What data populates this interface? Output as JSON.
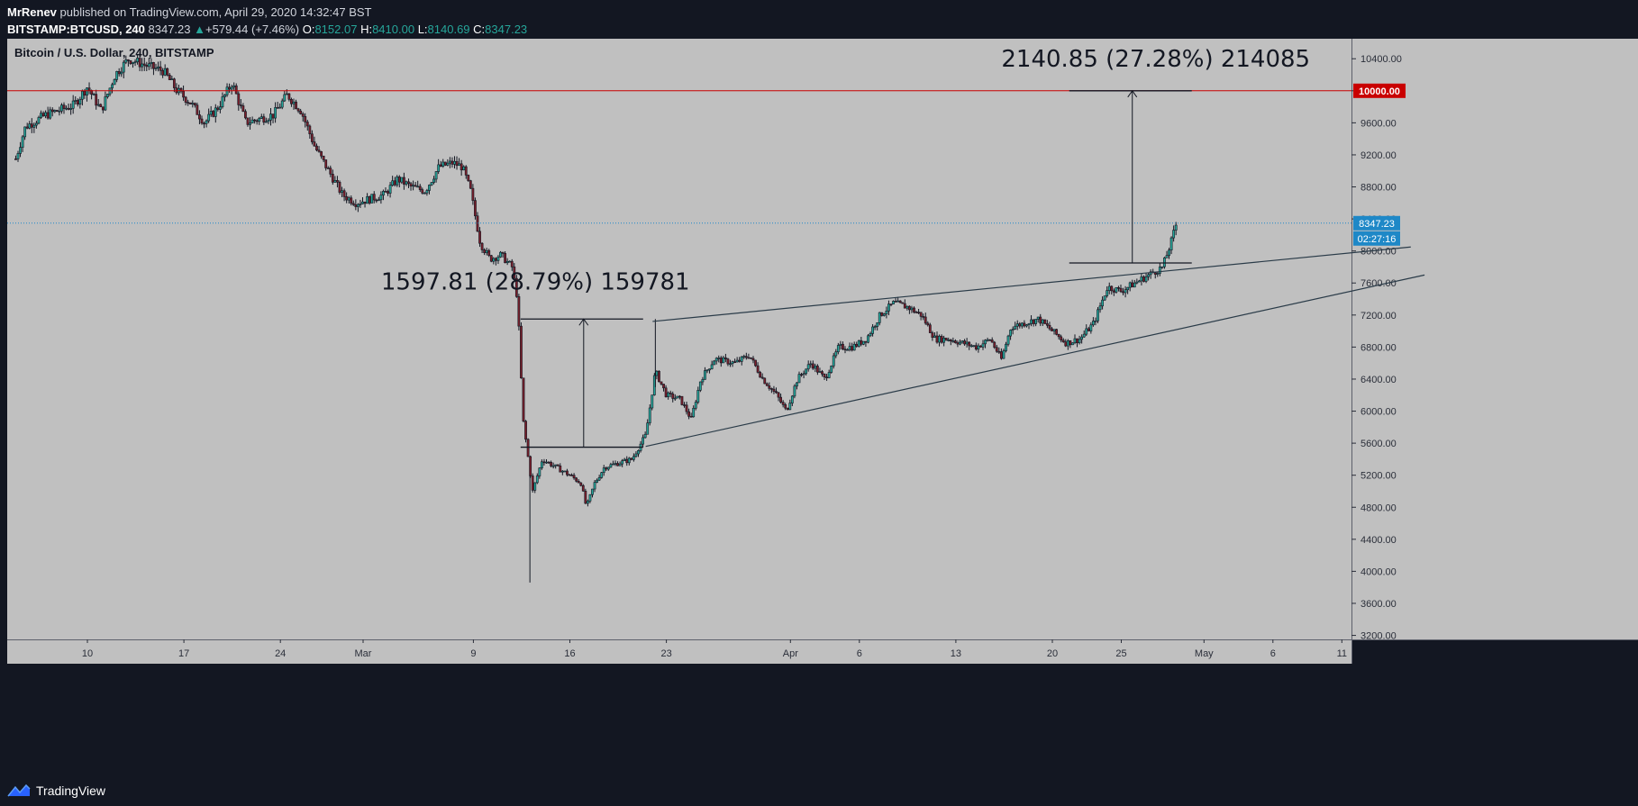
{
  "header": {
    "author": "MrRenev",
    "published_text": "published on TradingView.com, April 29, 2020 14:32:47 BST",
    "symbol": "BITSTAMP:BTCUSD, 240",
    "last": "8347.23",
    "change": "+579.44 (+7.46%)",
    "o_label": "O:",
    "o_value": "8152.07",
    "h_label": "H:",
    "h_value": "8410.00",
    "l_label": "L:",
    "l_value": "8140.69",
    "c_label": "C:",
    "c_value": "8347.23"
  },
  "footer": {
    "brand": "TradingView"
  },
  "colors": {
    "background": "#131722",
    "plot": "#c0c0c0",
    "candle": "#131722",
    "red_line": "#c90000",
    "price_blue": "#1e88c7",
    "trend": "#2a3b48"
  },
  "chart_data": {
    "type": "candlestick",
    "title": "Bitcoin / U.S. Dollar, 240, BITSTAMP",
    "ylim": [
      3150,
      10650
    ],
    "y_ticks": [
      "10400.00",
      "10000.00",
      "9600.00",
      "9200.00",
      "8800.00",
      "8400.00",
      "8000.00",
      "7600.00",
      "7200.00",
      "6800.00",
      "6400.00",
      "6000.00",
      "5600.00",
      "5200.00",
      "4800.00",
      "4400.00",
      "4000.00",
      "3600.00",
      "3200.00"
    ],
    "x_ticks": [
      {
        "label": "10",
        "day": 0
      },
      {
        "label": "17",
        "day": 7
      },
      {
        "label": "24",
        "day": 14
      },
      {
        "label": "Mar",
        "day": 20
      },
      {
        "label": "9",
        "day": 28
      },
      {
        "label": "16",
        "day": 35
      },
      {
        "label": "23",
        "day": 42
      },
      {
        "label": "Apr",
        "day": 51
      },
      {
        "label": "6",
        "day": 56
      },
      {
        "label": "13",
        "day": 63
      },
      {
        "label": "20",
        "day": 70
      },
      {
        "label": "25",
        "day": 75
      },
      {
        "label": "May",
        "day": 81
      },
      {
        "label": "6",
        "day": 86
      },
      {
        "label": "11",
        "day": 91
      }
    ],
    "x_range_days": [
      -5.2,
      97.2
    ],
    "key_points": [
      {
        "day": -5.2,
        "price": 9150
      },
      {
        "day": -4.5,
        "price": 9550
      },
      {
        "day": -3,
        "price": 9700
      },
      {
        "day": -1,
        "price": 9820
      },
      {
        "day": 0,
        "price": 10050
      },
      {
        "day": 1,
        "price": 9750
      },
      {
        "day": 2,
        "price": 10200
      },
      {
        "day": 3,
        "price": 10400
      },
      {
        "day": 4.5,
        "price": 10300
      },
      {
        "day": 5.5,
        "price": 10250
      },
      {
        "day": 6.5,
        "price": 10000
      },
      {
        "day": 7.5,
        "price": 9850
      },
      {
        "day": 8.5,
        "price": 9600
      },
      {
        "day": 9.5,
        "price": 9800
      },
      {
        "day": 10.5,
        "price": 10100
      },
      {
        "day": 11.5,
        "price": 9600
      },
      {
        "day": 12.5,
        "price": 9650
      },
      {
        "day": 13.5,
        "price": 9700
      },
      {
        "day": 14.5,
        "price": 9950
      },
      {
        "day": 15.5,
        "price": 9750
      },
      {
        "day": 16.5,
        "price": 9300
      },
      {
        "day": 17.5,
        "price": 9000
      },
      {
        "day": 18.5,
        "price": 8700
      },
      {
        "day": 19.5,
        "price": 8600
      },
      {
        "day": 20.5,
        "price": 8650
      },
      {
        "day": 21.5,
        "price": 8700
      },
      {
        "day": 22.5,
        "price": 8900
      },
      {
        "day": 23.5,
        "price": 8800
      },
      {
        "day": 24.5,
        "price": 8750
      },
      {
        "day": 25.5,
        "price": 9050
      },
      {
        "day": 26.5,
        "price": 9100
      },
      {
        "day": 27.2,
        "price": 9050
      },
      {
        "day": 27.8,
        "price": 8750
      },
      {
        "day": 28.5,
        "price": 8100
      },
      {
        "day": 29.2,
        "price": 7900
      },
      {
        "day": 30,
        "price": 7950
      },
      {
        "day": 30.8,
        "price": 7800
      },
      {
        "day": 31.2,
        "price": 7400
      },
      {
        "day": 31.6,
        "price": 5900
      },
      {
        "day": 32.3,
        "price": 5000
      },
      {
        "day": 33,
        "price": 5400
      },
      {
        "day": 34,
        "price": 5300
      },
      {
        "day": 35,
        "price": 5200
      },
      {
        "day": 35.8,
        "price": 5100
      },
      {
        "day": 36.2,
        "price": 4800
      },
      {
        "day": 36.8,
        "price": 5100
      },
      {
        "day": 37.5,
        "price": 5300
      },
      {
        "day": 38.5,
        "price": 5350
      },
      {
        "day": 39.5,
        "price": 5400
      },
      {
        "day": 40.5,
        "price": 5700
      },
      {
        "day": 41.2,
        "price": 6500
      },
      {
        "day": 42,
        "price": 6200
      },
      {
        "day": 43,
        "price": 6150
      },
      {
        "day": 43.8,
        "price": 5900
      },
      {
        "day": 44.5,
        "price": 6400
      },
      {
        "day": 45.5,
        "price": 6650
      },
      {
        "day": 47,
        "price": 6600
      },
      {
        "day": 48,
        "price": 6700
      },
      {
        "day": 49,
        "price": 6400
      },
      {
        "day": 50,
        "price": 6200
      },
      {
        "day": 50.7,
        "price": 6000
      },
      {
        "day": 51.5,
        "price": 6400
      },
      {
        "day": 52.5,
        "price": 6600
      },
      {
        "day": 53.5,
        "price": 6400
      },
      {
        "day": 54.5,
        "price": 6800
      },
      {
        "day": 55.5,
        "price": 6800
      },
      {
        "day": 56.5,
        "price": 6900
      },
      {
        "day": 57.5,
        "price": 7200
      },
      {
        "day": 58.5,
        "price": 7350
      },
      {
        "day": 59.5,
        "price": 7300
      },
      {
        "day": 60.5,
        "price": 7200
      },
      {
        "day": 61.5,
        "price": 6900
      },
      {
        "day": 62.5,
        "price": 6900
      },
      {
        "day": 63.5,
        "price": 6850
      },
      {
        "day": 64.5,
        "price": 6800
      },
      {
        "day": 65.5,
        "price": 6900
      },
      {
        "day": 66.3,
        "price": 6650
      },
      {
        "day": 67,
        "price": 7050
      },
      {
        "day": 68,
        "price": 7100
      },
      {
        "day": 69,
        "price": 7150
      },
      {
        "day": 70,
        "price": 7000
      },
      {
        "day": 71,
        "price": 6850
      },
      {
        "day": 72,
        "price": 6900
      },
      {
        "day": 73,
        "price": 7100
      },
      {
        "day": 74,
        "price": 7550
      },
      {
        "day": 75,
        "price": 7500
      },
      {
        "day": 76,
        "price": 7600
      },
      {
        "day": 77,
        "price": 7700
      },
      {
        "day": 78,
        "price": 7800
      },
      {
        "day": 78.6,
        "price": 8100
      },
      {
        "day": 79,
        "price": 8347
      }
    ],
    "last_price": 8347.23,
    "last_price_label": "8347.23",
    "countdown_label": "02:27:16",
    "horizontal_line": {
      "price": 10000,
      "label": "10000.00"
    },
    "trendlines": [
      {
        "from": {
          "day": 41,
          "price": 7120
        },
        "to": {
          "day": 96,
          "price": 8050
        }
      },
      {
        "from": {
          "day": 40.5,
          "price": 5560
        },
        "to": {
          "day": 97,
          "price": 7700
        }
      }
    ],
    "measures": [
      {
        "text": "1597.81 (28.79%) 159781",
        "day": 36,
        "from_price": 5550,
        "to_price": 7150,
        "text_day": 32.5,
        "text_price": 7520
      },
      {
        "text": "2140.85 (27.28%) 214085",
        "day": 75.8,
        "from_price": 7850,
        "to_price": 10000,
        "text_day": 77.5,
        "text_price": 10300
      }
    ]
  }
}
